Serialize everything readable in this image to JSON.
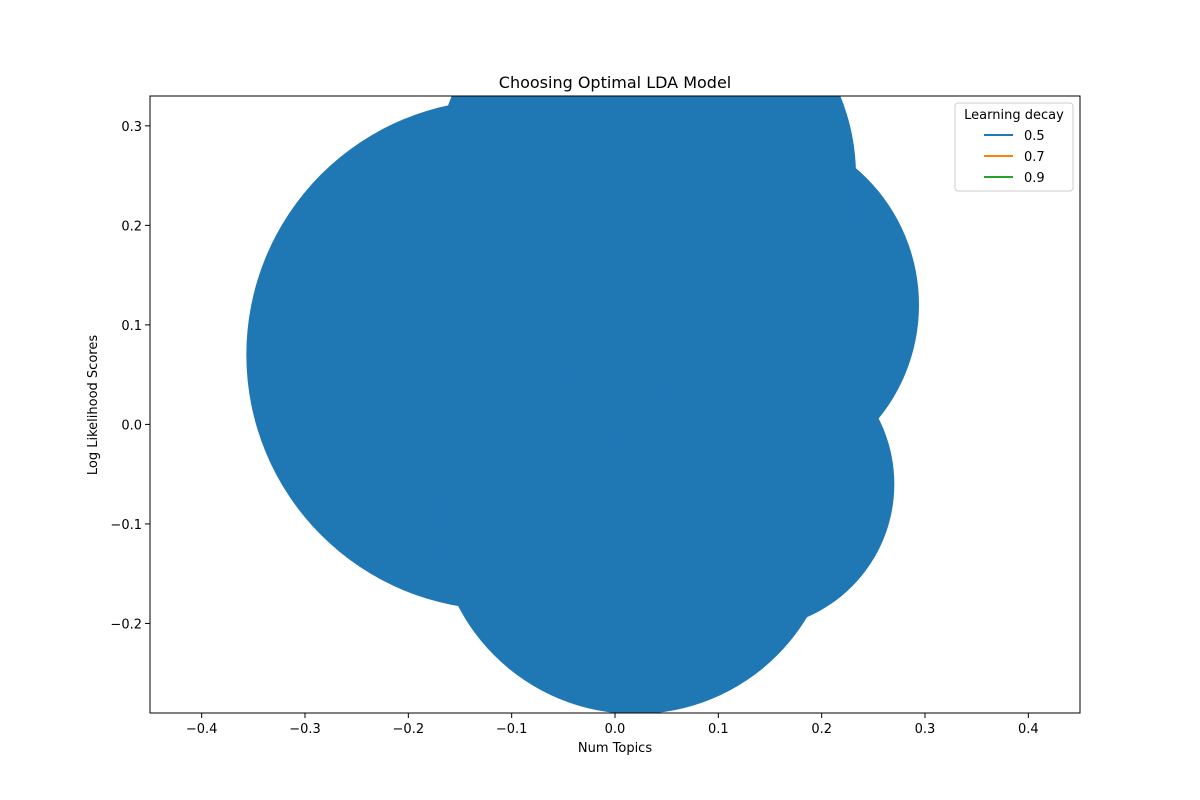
{
  "chart_data": {
    "type": "scatter",
    "title": "Choosing Optimal LDA Model",
    "xlabel": "Num Topics",
    "ylabel": "Log Likelihood Scores",
    "xlim": [
      -0.45,
      0.45
    ],
    "ylim": [
      -0.29,
      0.33
    ],
    "x_ticks": [
      -0.4,
      -0.3,
      -0.2,
      -0.1,
      0.0,
      0.1,
      0.2,
      0.3,
      0.4
    ],
    "x_tick_labels": [
      "−0.4",
      "−0.3",
      "−0.2",
      "−0.1",
      "0.0",
      "0.1",
      "0.2",
      "0.3",
      "0.4"
    ],
    "y_ticks": [
      -0.2,
      -0.1,
      0.0,
      0.1,
      0.2,
      0.3
    ],
    "y_tick_labels": [
      "−0.2",
      "−0.1",
      "0.0",
      "0.1",
      "0.2",
      "0.3"
    ],
    "grid": false,
    "legend": {
      "title": "Learning decay",
      "placement": "top-right",
      "entries": [
        {
          "label": "0.5",
          "color": "#1f77b4"
        },
        {
          "label": "0.7",
          "color": "#ff7f0e"
        },
        {
          "label": "0.9",
          "color": "#2ca02c"
        }
      ]
    },
    "series": [
      {
        "name": "0.5",
        "color": "#1f77b4",
        "points": [
          {
            "x": -0.11,
            "y": 0.07
          },
          {
            "x": 0.02,
            "y": -0.09
          },
          {
            "x": 0.13,
            "y": -0.06
          },
          {
            "x": 0.12,
            "y": 0.12
          },
          {
            "x": 0.03,
            "y": 0.25
          }
        ]
      },
      {
        "name": "0.7",
        "color": "#ff7f0e",
        "points": []
      },
      {
        "name": "0.9",
        "color": "#2ca02c",
        "points": []
      }
    ]
  }
}
